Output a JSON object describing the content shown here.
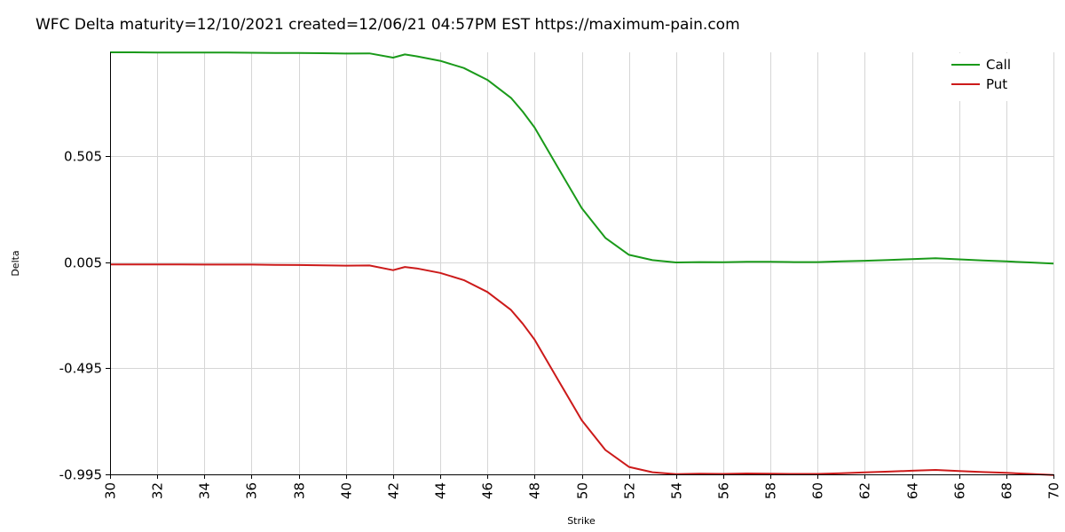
{
  "chart_data": {
    "type": "line",
    "title": "WFC Delta maturity=12/10/2021 created=12/06/21 04:57PM EST https://maximum-pain.com",
    "xlabel": "Strike",
    "ylabel": "Delta",
    "xlim": [
      30,
      70
    ],
    "ylim": [
      -0.995,
      0.995
    ],
    "x_ticks": [
      "30",
      "32",
      "34",
      "36",
      "38",
      "40",
      "42",
      "44",
      "46",
      "48",
      "50",
      "52",
      "54",
      "56",
      "58",
      "60",
      "62",
      "64",
      "66",
      "68",
      "70"
    ],
    "y_ticks": [
      "0.505",
      "0.005",
      "-0.495",
      "-0.995"
    ],
    "y_tick_values": [
      0.505,
      0.005,
      -0.495,
      -0.995
    ],
    "grid": true,
    "legend_position": "top-right",
    "series": [
      {
        "name": "Call",
        "color": "#1a9a1a",
        "x": [
          30,
          31,
          32,
          33,
          34,
          35,
          36,
          37,
          38,
          39,
          40,
          41,
          42,
          42.5,
          43,
          44,
          45,
          46,
          47,
          47.5,
          48,
          49,
          50,
          51,
          52,
          53,
          54,
          55,
          56,
          57,
          58,
          59,
          60,
          61,
          62,
          63,
          64,
          65,
          66,
          67,
          68,
          69,
          70
        ],
        "y": [
          0.995,
          0.995,
          0.994,
          0.994,
          0.994,
          0.994,
          0.993,
          0.992,
          0.992,
          0.991,
          0.989,
          0.99,
          0.97,
          0.985,
          0.976,
          0.955,
          0.921,
          0.865,
          0.78,
          0.715,
          0.64,
          0.45,
          0.26,
          0.12,
          0.04,
          0.015,
          0.004,
          0.006,
          0.005,
          0.007,
          0.007,
          0.006,
          0.006,
          0.009,
          0.012,
          0.016,
          0.02,
          0.024,
          0.019,
          0.014,
          0.009,
          0.004,
          -0.001
        ]
      },
      {
        "name": "Put",
        "color": "#cc1a1a",
        "x": [
          30,
          31,
          32,
          33,
          34,
          35,
          36,
          37,
          38,
          39,
          40,
          41,
          42,
          42.5,
          43,
          44,
          45,
          46,
          47,
          47.5,
          48,
          49,
          50,
          51,
          52,
          53,
          54,
          55,
          56,
          57,
          58,
          59,
          60,
          61,
          62,
          63,
          64,
          65,
          66,
          67,
          68,
          69,
          70
        ],
        "y": [
          -0.005,
          -0.005,
          -0.005,
          -0.005,
          -0.006,
          -0.006,
          -0.006,
          -0.007,
          -0.008,
          -0.009,
          -0.011,
          -0.01,
          -0.032,
          -0.017,
          -0.024,
          -0.045,
          -0.079,
          -0.135,
          -0.22,
          -0.285,
          -0.36,
          -0.55,
          -0.74,
          -0.88,
          -0.96,
          -0.985,
          -0.994,
          -0.992,
          -0.993,
          -0.991,
          -0.992,
          -0.993,
          -0.993,
          -0.99,
          -0.986,
          -0.982,
          -0.978,
          -0.974,
          -0.979,
          -0.984,
          -0.988,
          -0.993,
          -0.998
        ]
      }
    ]
  }
}
